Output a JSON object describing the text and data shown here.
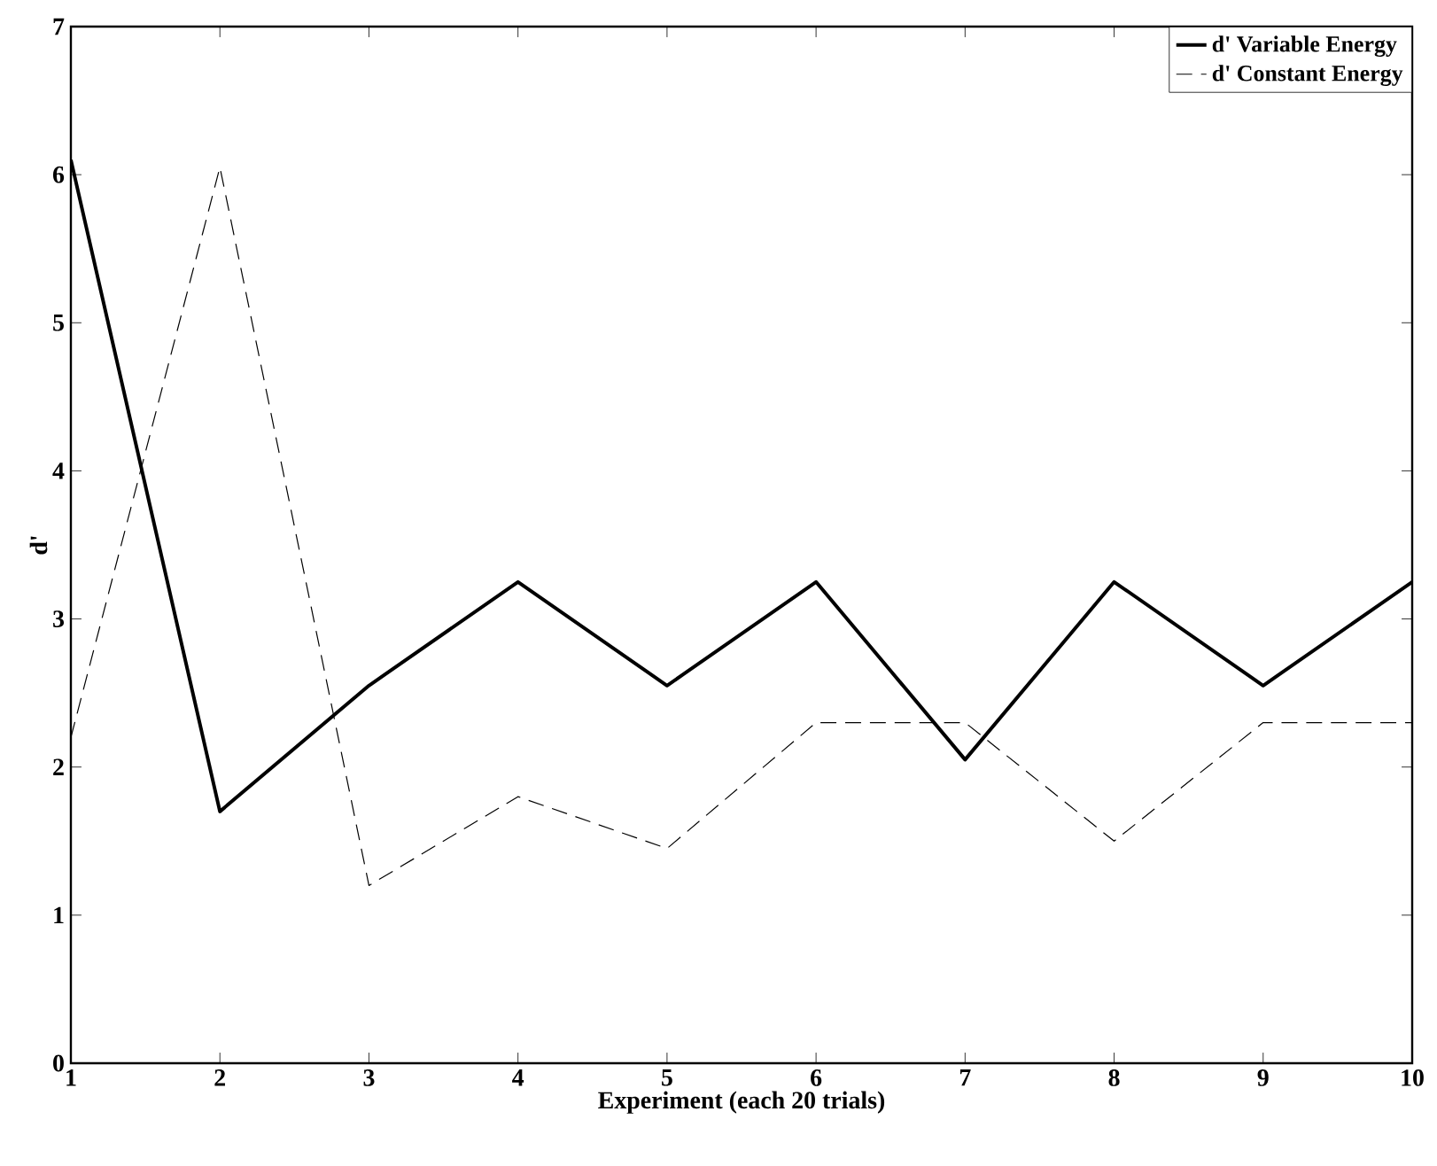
{
  "chart_data": {
    "type": "line",
    "xlabel": "Experiment (each 20 trials)",
    "ylabel": "d'",
    "x": [
      1,
      2,
      3,
      4,
      5,
      6,
      7,
      8,
      9,
      10
    ],
    "series": [
      {
        "name": "d' Variable Energy",
        "color": "#000000",
        "line_style": "solid",
        "values": [
          6.1,
          1.7,
          2.55,
          3.25,
          2.55,
          3.25,
          2.05,
          3.25,
          2.55,
          3.25
        ]
      },
      {
        "name": "d' Constant Energy",
        "color": "#000000",
        "line_style": "dashed",
        "values": [
          2.2,
          6.05,
          1.2,
          1.8,
          1.45,
          2.3,
          2.3,
          1.5,
          2.3,
          2.3
        ]
      }
    ],
    "xlim": [
      1,
      10
    ],
    "xticks": [
      1,
      2,
      3,
      4,
      5,
      6,
      7,
      8,
      9,
      10
    ],
    "ylim": [
      0,
      7
    ],
    "yticks": [
      0,
      1,
      2,
      3,
      4,
      5,
      6,
      7
    ],
    "grid": false,
    "legend": "top right"
  }
}
